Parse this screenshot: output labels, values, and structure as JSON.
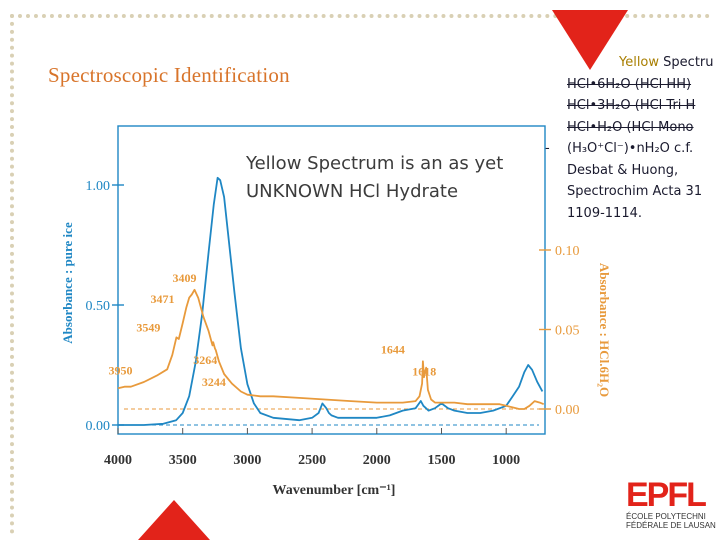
{
  "slide": {
    "title": "Spectroscopic Identification",
    "note": "Yellow Spectrum is an as yet UNKNOWN HCl Hydrate"
  },
  "references": {
    "item1": {
      "a": "",
      "b": "Yellow",
      "c": " Spectru"
    },
    "item2": "HCl•6H₂O (HCl HH)",
    "item3": "HCl•3H₂O (HCl Tri H",
    "item4": "HCl•H₂O (HCl Mono",
    "item5_bullet": "-",
    "item5_line1": "(H₃O⁺Cl⁻)•nH₂O c.f.",
    "item5_line2": "Desbat & Huong,",
    "item5_line3": "Spectrochim Acta 31",
    "item5_line4": "1109-1114."
  },
  "colors": {
    "accent_orange": "#d8742a",
    "blue_series": "#1f87c4",
    "orange_series": "#e89a3c",
    "epfl_red": "#e2231a"
  },
  "logo": {
    "mark": "EPFL",
    "line1": "ÉCOLE POLYTECHNI",
    "line2": "FÉDÉRALE DE LAUSAN"
  },
  "chart_data": {
    "type": "line",
    "xlabel": "Wavenumber [cm⁻¹]",
    "ylabel_left": "Absorbance : pure ice",
    "ylabel_right": "Absorbance : HCl.6H₂O",
    "x_range": [
      4000,
      700
    ],
    "y_left_range": [
      0,
      1.0
    ],
    "y_right_range": [
      0,
      0.1
    ],
    "x_ticks": [
      "4000",
      "3500",
      "3000",
      "2500",
      "2000",
      "1500",
      "1000"
    ],
    "y_left_ticks": [
      "0.00",
      "0.50",
      "1.00"
    ],
    "y_right_ticks": [
      "0.00",
      "0.05",
      "0.10"
    ],
    "annotations": [
      "3950",
      "3549",
      "3471",
      "3409",
      "3264",
      "3244",
      "1644",
      "1618"
    ],
    "series": [
      {
        "name": "pure ice",
        "color": "#1f87c4",
        "x": [
          4000,
          3800,
          3650,
          3550,
          3500,
          3450,
          3400,
          3350,
          3300,
          3260,
          3230,
          3210,
          3180,
          3150,
          3100,
          3050,
          3000,
          2950,
          2900,
          2800,
          2600,
          2500,
          2450,
          2420,
          2390,
          2370,
          2350,
          2300,
          2200,
          2000,
          1900,
          1800,
          1700,
          1660,
          1640,
          1620,
          1600,
          1550,
          1500,
          1450,
          1400,
          1300,
          1200,
          1100,
          1000,
          950,
          900,
          860,
          830,
          800,
          760,
          720
        ],
        "y": [
          0.0,
          0.0,
          0.005,
          0.02,
          0.05,
          0.12,
          0.26,
          0.46,
          0.72,
          0.92,
          1.03,
          1.02,
          0.95,
          0.8,
          0.55,
          0.32,
          0.17,
          0.09,
          0.05,
          0.03,
          0.02,
          0.03,
          0.05,
          0.09,
          0.07,
          0.05,
          0.04,
          0.03,
          0.03,
          0.03,
          0.04,
          0.06,
          0.07,
          0.1,
          0.08,
          0.07,
          0.06,
          0.07,
          0.09,
          0.07,
          0.06,
          0.05,
          0.05,
          0.06,
          0.08,
          0.12,
          0.16,
          0.22,
          0.25,
          0.23,
          0.18,
          0.14
        ]
      },
      {
        "name": "HCl.6H2O",
        "color": "#e89a3c",
        "x": [
          4000,
          3950,
          3900,
          3800,
          3700,
          3620,
          3580,
          3560,
          3549,
          3530,
          3500,
          3471,
          3450,
          3430,
          3409,
          3380,
          3340,
          3300,
          3270,
          3264,
          3250,
          3244,
          3220,
          3180,
          3120,
          3050,
          3000,
          2900,
          2800,
          2600,
          2400,
          2200,
          2000,
          1900,
          1800,
          1700,
          1670,
          1650,
          1644,
          1635,
          1625,
          1618,
          1605,
          1580,
          1550,
          1500,
          1400,
          1300,
          1200,
          1100,
          1050,
          1000,
          950,
          900,
          860,
          820,
          780,
          740,
          710
        ],
        "y": [
          0.013,
          0.014,
          0.014,
          0.017,
          0.021,
          0.025,
          0.034,
          0.041,
          0.045,
          0.044,
          0.054,
          0.064,
          0.07,
          0.072,
          0.075,
          0.07,
          0.058,
          0.049,
          0.04,
          0.042,
          0.038,
          0.037,
          0.03,
          0.022,
          0.016,
          0.011,
          0.009,
          0.008,
          0.008,
          0.007,
          0.006,
          0.005,
          0.004,
          0.004,
          0.004,
          0.005,
          0.008,
          0.016,
          0.03,
          0.02,
          0.024,
          0.026,
          0.012,
          0.006,
          0.004,
          0.004,
          0.004,
          0.003,
          0.003,
          0.003,
          0.003,
          0.002,
          0.001,
          0.0,
          0.0,
          0.002,
          0.005,
          0.004,
          0.003
        ]
      }
    ]
  }
}
